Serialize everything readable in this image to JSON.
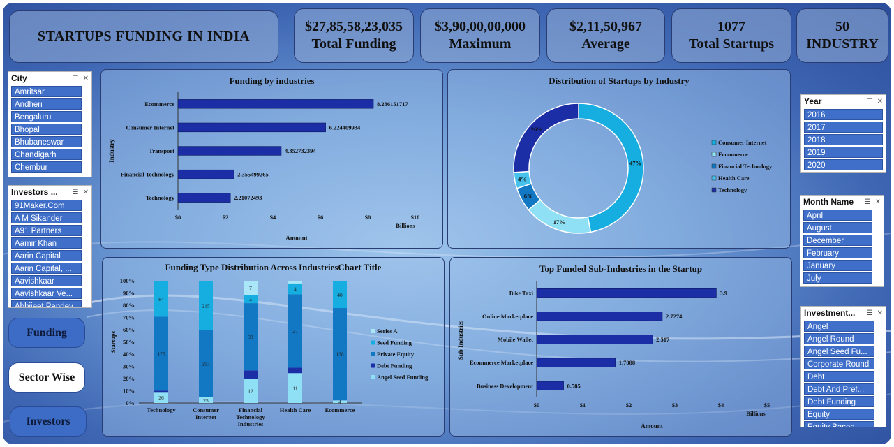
{
  "header": {
    "title": "STARTUPS FUNDING IN INDIA",
    "kpis": [
      {
        "value": "$27,85,58,23,035",
        "label": "Total Funding"
      },
      {
        "value": "$3,90,00,00,000",
        "label": "Maximum"
      },
      {
        "value": "$2,11,50,967",
        "label": "Average"
      },
      {
        "value": "1077",
        "label": "Total Startups"
      },
      {
        "value": "50",
        "label": "INDUSTRY"
      }
    ]
  },
  "slicers": {
    "city": {
      "title": "City",
      "items": [
        "Amritsar",
        "Andheri",
        "Bengaluru",
        "Bhopal",
        "Bhubaneswar",
        "Chandigarh",
        "Chembur"
      ]
    },
    "investors": {
      "title": "Investors ...",
      "items": [
        "91Maker.Com",
        "A M Sikander",
        "A91 Partners",
        "Aamir Khan",
        "Aarin Capital",
        "Aarin Capital, ...",
        "Aavishkaar",
        "Aavishkaar Ve...",
        "Abhijeet Pandey"
      ]
    },
    "year": {
      "title": "Year",
      "items": [
        "2016",
        "2017",
        "2018",
        "2019",
        "2020"
      ]
    },
    "month": {
      "title": "Month Name",
      "items": [
        "April",
        "August",
        "December",
        "February",
        "January",
        "July"
      ]
    },
    "investment": {
      "title": "Investment...",
      "items": [
        "Angel",
        "Angel Round",
        "Angel Seed Fu...",
        "Corporate Round",
        "Debt",
        "Debt And Pref...",
        "Debt Funding",
        "Equity",
        "Equity Based..."
      ]
    }
  },
  "nav": {
    "funding": "Funding",
    "sector": "Sector Wise",
    "investors": "Investors"
  },
  "chart_data": [
    {
      "type": "bar",
      "orientation": "horizontal",
      "title": "Funding by industries",
      "xlabel": "Amount",
      "ylabel": "Industry",
      "unit_label": "Billions",
      "categories": [
        "Ecommerce",
        "Consumer Internet",
        "Transport",
        "Financial Technology",
        "Technology"
      ],
      "values": [
        8.236151717,
        6.224409934,
        4.352732394,
        2.355499265,
        2.21072493
      ],
      "value_labels": [
        "8.236151717",
        "6.224409934",
        "4.352732394",
        "2.355499265",
        "2.21072493"
      ],
      "xlim": [
        0,
        10
      ],
      "xticks": [
        "$0",
        "$2",
        "$4",
        "$6",
        "$8",
        "$10"
      ],
      "color": "#1c2ea6"
    },
    {
      "type": "pie",
      "donut": true,
      "title": "Distribution of Startups by Industry",
      "labels": [
        "Consumer Internet",
        "Ecommerce",
        "Financial Technology",
        "Health Care",
        "Technology"
      ],
      "percents": [
        47,
        17,
        6,
        4,
        26
      ],
      "percent_labels": [
        "47%",
        "17%",
        "6%",
        "4%",
        "26%"
      ],
      "colors": [
        "#16aee0",
        "#8fdff5",
        "#1278c4",
        "#46c2ec",
        "#1c2ea6"
      ],
      "legend": "right"
    },
    {
      "type": "bar",
      "stacked": "percent",
      "title": "Funding Type Distribution Across IndustriesChart Title",
      "ylabel": "Startups",
      "categories": [
        "Technology",
        "Consumer Internet",
        "Financial Technology Industries",
        "Health Care",
        "Ecommerce"
      ],
      "category_lines": [
        [
          "Technology"
        ],
        [
          "Consumer",
          "Internet"
        ],
        [
          "Financial",
          "Technology",
          "Industries"
        ],
        [
          "Health Care"
        ],
        [
          "Ecommerce"
        ]
      ],
      "yticks": [
        "0%",
        "10%",
        "20%",
        "30%",
        "40%",
        "50%",
        "60%",
        "70%",
        "80%",
        "90%",
        "100%"
      ],
      "series": [
        {
          "name": "Angel Seed Funding",
          "color": "#8fdff5",
          "values": [
            26,
            25,
            12,
            11,
            4
          ],
          "labels": [
            "26",
            "25",
            "12",
            "11",
            "4"
          ]
        },
        {
          "name": "Debt Funding",
          "color": "#1c2ea6",
          "values": [
            3,
            0,
            4,
            2,
            1
          ],
          "labels": [
            "",
            "",
            "",
            "",
            ""
          ]
        },
        {
          "name": "Private Equity",
          "color": "#1278c4",
          "values": [
            175,
            293,
            33,
            27,
            138
          ],
          "labels": [
            "175",
            "293",
            "33",
            "27",
            "138"
          ]
        },
        {
          "name": "Seed Funding",
          "color": "#16aee0",
          "values": [
            84,
            215,
            4,
            4,
            40
          ],
          "labels": [
            "84",
            "215",
            "4",
            "4",
            "40"
          ]
        },
        {
          "name": "Series A",
          "color": "#a8e6f8",
          "values": [
            1,
            0,
            7,
            1,
            1
          ],
          "labels": [
            "",
            "",
            "7",
            "",
            ""
          ]
        }
      ],
      "legend": "right"
    },
    {
      "type": "bar",
      "orientation": "horizontal",
      "title": "Top Funded Sub-Industries in the Startup",
      "xlabel": "Amount",
      "ylabel": "Sub Industries",
      "unit_label": "Billions",
      "categories": [
        "Bike Taxi",
        "Online Marketplace",
        "Mobile Wallet",
        "Ecommerce Marketplace",
        "Business Development"
      ],
      "values": [
        3.9,
        2.7274,
        2.517,
        1.7088,
        0.585
      ],
      "value_labels": [
        "3.9",
        "2.7274",
        "2.517",
        "1.7088",
        "0.585"
      ],
      "xlim": [
        0,
        5
      ],
      "xticks": [
        "$0",
        "$1",
        "$2",
        "$3",
        "$4",
        "$5"
      ],
      "color": "#1c2ea6"
    }
  ]
}
